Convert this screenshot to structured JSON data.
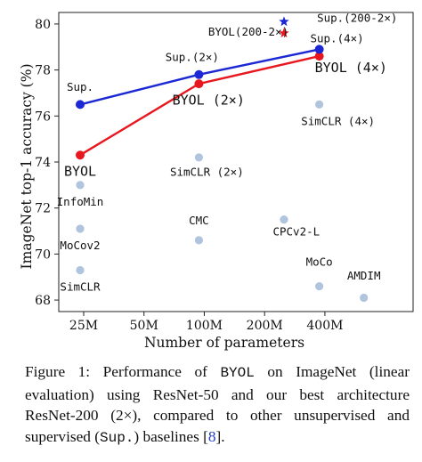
{
  "chart_data": {
    "type": "scatter",
    "xlabel": "Number of parameters",
    "ylabel": "ImageNet top-1 accuracy (%)",
    "x_ticks": [
      "25M",
      "50M",
      "100M",
      "200M",
      "400M"
    ],
    "ylim": [
      67.5,
      80.5
    ],
    "y_ticks": [
      68,
      70,
      72,
      74,
      76,
      78,
      80
    ],
    "grid": false,
    "colors": {
      "byol": "#e8161e",
      "sup": "#1b28d4",
      "other": "#b0c4de",
      "star_byol": "#e8161e",
      "star_sup": "#1b28d4"
    },
    "lines": [
      {
        "name": "BYOL",
        "series": "byol",
        "points": [
          {
            "x": 24,
            "y": 74.3
          },
          {
            "x": 94,
            "y": 77.4
          },
          {
            "x": 375,
            "y": 78.6
          }
        ]
      },
      {
        "name": "Sup.",
        "series": "sup",
        "points": [
          {
            "x": 24,
            "y": 76.5
          },
          {
            "x": 94,
            "y": 77.8
          },
          {
            "x": 375,
            "y": 78.9
          }
        ]
      }
    ],
    "others": [
      {
        "x": 24,
        "y": 73.0
      },
      {
        "x": 24,
        "y": 71.1
      },
      {
        "x": 24,
        "y": 69.3
      },
      {
        "x": 94,
        "y": 74.2
      },
      {
        "x": 94,
        "y": 70.6
      },
      {
        "x": 250,
        "y": 71.5
      },
      {
        "x": 375,
        "y": 76.5
      },
      {
        "x": 375,
        "y": 68.6
      },
      {
        "x": 626,
        "y": 68.1
      }
    ],
    "stars": [
      {
        "x": 250,
        "y": 79.6,
        "series": "star_byol"
      },
      {
        "x": 250,
        "y": 80.1,
        "series": "star_sup"
      }
    ],
    "labels": [
      {
        "text": "Sup.",
        "x": 24,
        "y": 77.1,
        "style": "mono"
      },
      {
        "text": "BYOL",
        "x": 24,
        "y": 73.4,
        "style": "mono-lg"
      },
      {
        "text": "InfoMin",
        "x": 24,
        "y": 72.1,
        "style": "mono"
      },
      {
        "text": "MoCov2",
        "x": 24,
        "y": 70.2,
        "style": "mono"
      },
      {
        "text": "SimCLR",
        "x": 24,
        "y": 68.4,
        "style": "mono"
      },
      {
        "text": "Sup.(2×)",
        "x": 87,
        "y": 78.4,
        "style": "mono"
      },
      {
        "text": "BYOL (2×)",
        "x": 105,
        "y": 76.5,
        "style": "mono-lg"
      },
      {
        "text": "SimCLR (2×)",
        "x": 103,
        "y": 73.4,
        "style": "mono"
      },
      {
        "text": "CMC",
        "x": 94,
        "y": 71.3,
        "style": "mono"
      },
      {
        "text": "CPCv2-L",
        "x": 288,
        "y": 70.8,
        "style": "mono"
      },
      {
        "text": "SimCLR (4×)",
        "x": 465,
        "y": 75.6,
        "style": "mono"
      },
      {
        "text": "MoCo",
        "x": 375,
        "y": 69.5,
        "style": "mono"
      },
      {
        "text": "AMDIM",
        "x": 626,
        "y": 68.9,
        "style": "mono"
      },
      {
        "text": "Sup.(4×)",
        "x": 460,
        "y": 79.2,
        "style": "mono"
      },
      {
        "text": "BYOL (4×)",
        "x": 540,
        "y": 77.9,
        "style": "mono-lg"
      },
      {
        "text": "BYOL(200-2×)",
        "x": 166,
        "y": 79.5,
        "style": "mono"
      },
      {
        "text": "Sup.(200-2×)",
        "x": 580,
        "y": 80.1,
        "style": "mono"
      }
    ]
  },
  "caption": {
    "prefix": "Figure 1: Performance of ",
    "code1": "BYOL",
    "middle": " on ImageNet (linear evaluation) using ResNet-50 and our best architecture ResNet-200 (2×), compared to other unsupervised and supervised (",
    "code2": "Sup.",
    "suffix": ") baselines [",
    "cite": "8",
    "end": "]."
  }
}
